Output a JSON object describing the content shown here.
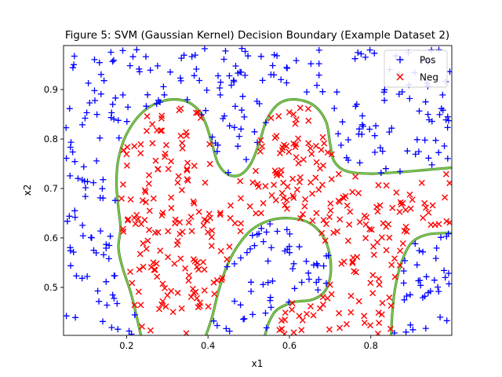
{
  "chart_data": {
    "type": "scatter",
    "title": "Figure 5: SVM (Gaussian Kernel) Decision Boundary (Example Dataset 2)",
    "xlabel": "x1",
    "ylabel": "x2",
    "xlim": [
      0.045,
      0.999
    ],
    "ylim": [
      0.403,
      0.989
    ],
    "xticks": [
      0.2,
      0.4,
      0.6,
      0.8
    ],
    "yticks": [
      0.5,
      0.6,
      0.7,
      0.8,
      0.9
    ],
    "xtick_labels": [
      "0.2",
      "0.4",
      "0.6",
      "0.8"
    ],
    "ytick_labels": [
      "0.5",
      "0.6",
      "0.7",
      "0.8",
      "0.9"
    ],
    "grid": false,
    "legend_position": "top-right",
    "series": [
      {
        "name": "Pos",
        "marker": "+",
        "color": "#0000ff",
        "count": 360,
        "note": "positive samples; cloud surrounding the negative regions"
      },
      {
        "name": "Neg",
        "marker": "x",
        "color": "#ff0000",
        "count": 380,
        "note": "negative samples; two lobes joined in the middle"
      }
    ],
    "boundary": {
      "color": "#7ec850",
      "curves": [
        [
          [
            0.235,
            0.403
          ],
          [
            0.225,
            0.44
          ],
          [
            0.21,
            0.49
          ],
          [
            0.19,
            0.54
          ],
          [
            0.18,
            0.58
          ],
          [
            0.185,
            0.62
          ],
          [
            0.18,
            0.66
          ],
          [
            0.175,
            0.71
          ],
          [
            0.18,
            0.76
          ],
          [
            0.2,
            0.81
          ],
          [
            0.24,
            0.855
          ],
          [
            0.29,
            0.877
          ],
          [
            0.34,
            0.878
          ],
          [
            0.375,
            0.86
          ],
          [
            0.395,
            0.83
          ],
          [
            0.41,
            0.79
          ],
          [
            0.425,
            0.75
          ],
          [
            0.45,
            0.728
          ],
          [
            0.48,
            0.728
          ],
          [
            0.505,
            0.75
          ],
          [
            0.525,
            0.79
          ],
          [
            0.545,
            0.84
          ],
          [
            0.575,
            0.872
          ],
          [
            0.615,
            0.88
          ],
          [
            0.66,
            0.868
          ],
          [
            0.69,
            0.835
          ],
          [
            0.7,
            0.79
          ],
          [
            0.71,
            0.755
          ],
          [
            0.74,
            0.735
          ],
          [
            0.8,
            0.73
          ],
          [
            0.87,
            0.733
          ],
          [
            0.94,
            0.738
          ],
          [
            0.999,
            0.742
          ]
        ],
        [
          [
            0.395,
            0.403
          ],
          [
            0.41,
            0.44
          ],
          [
            0.425,
            0.49
          ],
          [
            0.445,
            0.54
          ],
          [
            0.47,
            0.58
          ],
          [
            0.505,
            0.615
          ],
          [
            0.55,
            0.635
          ],
          [
            0.6,
            0.64
          ],
          [
            0.65,
            0.63
          ],
          [
            0.685,
            0.6
          ],
          [
            0.7,
            0.56
          ],
          [
            0.7,
            0.52
          ],
          [
            0.685,
            0.49
          ],
          [
            0.655,
            0.475
          ],
          [
            0.61,
            0.47
          ],
          [
            0.57,
            0.455
          ],
          [
            0.55,
            0.43
          ],
          [
            0.54,
            0.403
          ]
        ],
        [
          [
            0.85,
            0.403
          ],
          [
            0.853,
            0.45
          ],
          [
            0.86,
            0.5
          ],
          [
            0.875,
            0.55
          ],
          [
            0.9,
            0.59
          ],
          [
            0.94,
            0.607
          ],
          [
            0.999,
            0.61
          ]
        ]
      ]
    }
  }
}
